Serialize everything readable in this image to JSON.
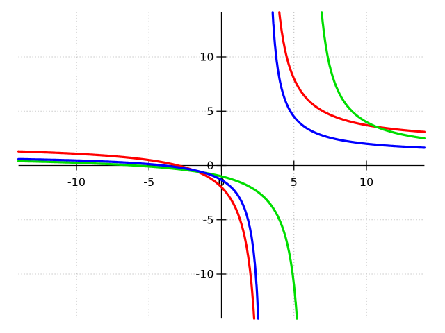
{
  "chart_data": {
    "type": "line",
    "title": "",
    "xlabel": "",
    "ylabel": "",
    "x_range": [
      -14,
      14
    ],
    "y_range": [
      -14.1,
      14.1
    ],
    "x_ticks": [
      {
        "value": -10,
        "label": "-10"
      },
      {
        "value": -5,
        "label": "-5"
      },
      {
        "value": 0,
        "label": "0"
      },
      {
        "value": 5,
        "label": "5"
      },
      {
        "value": 10,
        "label": "10"
      }
    ],
    "y_ticks": [
      {
        "value": 10,
        "label": "10"
      },
      {
        "value": 5,
        "label": "5"
      },
      {
        "value": 0,
        "label": "0"
      },
      {
        "value": -5,
        "label": "-5"
      },
      {
        "value": -10,
        "label": "-10"
      }
    ],
    "grid": {
      "shown": true,
      "style": "dotted",
      "color": "#adadad"
    },
    "axes": {
      "style": "through-origin",
      "color": "#000000"
    },
    "background": "#ffffff",
    "legend": {
      "shown": false
    },
    "series": [
      {
        "name": "red-curve",
        "expression": "2*(x+3)/(x-3)",
        "color": "#ff0000",
        "vertical_asymptote": 3,
        "horizontal_asymptote": 2,
        "x_intercept": -3,
        "y_intercept": -2
      },
      {
        "name": "green-curve",
        "expression": "(x+6)/(x-6)",
        "color": "#00dd00",
        "vertical_asymptote": 6,
        "horizontal_asymptote": 1,
        "x_intercept": -6,
        "y_intercept": -1
      },
      {
        "name": "blue-curve",
        "expression": "(x+4)/(x-3)",
        "color": "#0000ff",
        "vertical_asymptote": 3,
        "horizontal_asymptote": 1,
        "x_intercept": -4,
        "y_intercept": -1.33
      }
    ]
  }
}
